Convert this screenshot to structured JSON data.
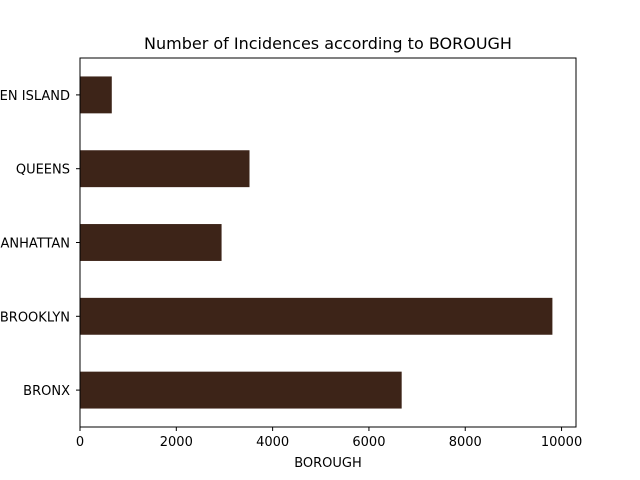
{
  "chart_data": {
    "type": "bar",
    "orientation": "horizontal",
    "title": "Number of Incidences according to BOROUGH",
    "xlabel": "BOROUGH",
    "ylabel": "",
    "categories": [
      "BRONX",
      "BROOKLYN",
      "MANHATTAN",
      "QUEENS",
      "STATEN ISLAND"
    ],
    "values": [
      6680,
      9810,
      2940,
      3520,
      660
    ],
    "xlim": [
      0,
      10300
    ],
    "xticks": [
      0,
      2000,
      4000,
      6000,
      8000,
      10000
    ],
    "bar_color": "#3d2418",
    "grid": false,
    "legend": "none"
  }
}
